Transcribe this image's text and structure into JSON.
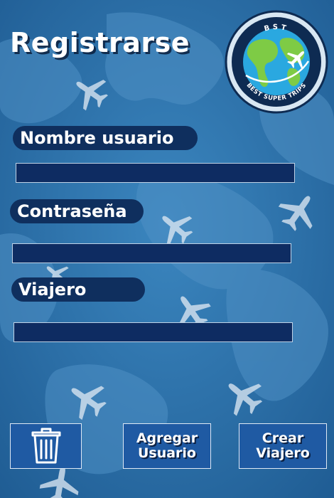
{
  "screen": {
    "title": "Registrarse"
  },
  "logo": {
    "top_text": "BST",
    "bottom_text": "BEST SUPER TRIPS"
  },
  "form": {
    "username_label": "Nombre usuario",
    "username_value": "",
    "password_label": "Contraseña",
    "password_value": "",
    "traveler_label": "Viajero",
    "traveler_value": ""
  },
  "actions": {
    "delete_icon": "trash-icon",
    "add_user_line1": "Agregar",
    "add_user_line2": "Usuario",
    "create_traveler_line1": "Crear",
    "create_traveler_line2": "Viajero"
  },
  "colors": {
    "background": "#2c6fa6",
    "pill": "#0f2f5e",
    "field": "#0e2c62",
    "button": "#1f5aa3"
  }
}
